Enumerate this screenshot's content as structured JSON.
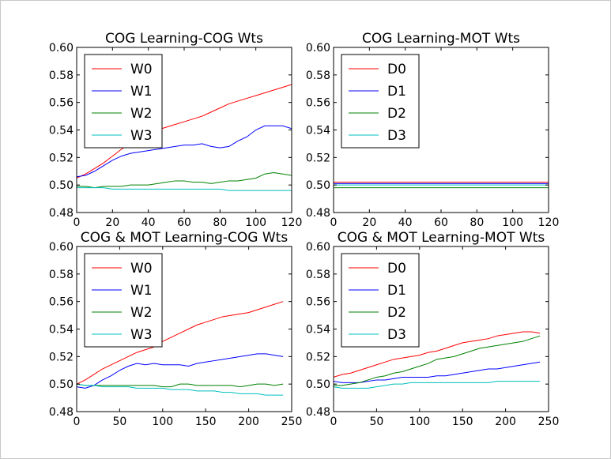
{
  "chart_data": [
    {
      "type": "line",
      "title": "COG Learning-COG Wts",
      "xlim": [
        0,
        120
      ],
      "ylim": [
        0.48,
        0.6
      ],
      "xticks": [
        "0",
        "20",
        "40",
        "60",
        "80",
        "100",
        "120"
      ],
      "yticks": [
        "0.48",
        "0.50",
        "0.52",
        "0.54",
        "0.56",
        "0.58",
        "0.60"
      ],
      "legend": {
        "location": "upper-left"
      },
      "x": [
        0,
        5,
        10,
        15,
        20,
        25,
        30,
        35,
        40,
        45,
        50,
        55,
        60,
        65,
        70,
        75,
        80,
        85,
        90,
        95,
        100,
        105,
        110,
        115,
        120
      ],
      "series": [
        {
          "name": "W0",
          "color": "#ff0000",
          "values": [
            0.505,
            0.508,
            0.512,
            0.516,
            0.521,
            0.526,
            0.53,
            0.534,
            0.537,
            0.54,
            0.542,
            0.544,
            0.546,
            0.548,
            0.55,
            0.553,
            0.556,
            0.559,
            0.561,
            0.563,
            0.565,
            0.567,
            0.569,
            0.571,
            0.573
          ]
        },
        {
          "name": "W1",
          "color": "#0000ff",
          "values": [
            0.506,
            0.507,
            0.51,
            0.514,
            0.518,
            0.521,
            0.523,
            0.524,
            0.525,
            0.526,
            0.527,
            0.528,
            0.529,
            0.529,
            0.53,
            0.528,
            0.527,
            0.528,
            0.532,
            0.535,
            0.54,
            0.543,
            0.543,
            0.543,
            0.541
          ]
        },
        {
          "name": "W2",
          "color": "#008000",
          "values": [
            0.499,
            0.499,
            0.498,
            0.499,
            0.499,
            0.499,
            0.5,
            0.5,
            0.5,
            0.501,
            0.502,
            0.503,
            0.503,
            0.502,
            0.502,
            0.501,
            0.502,
            0.503,
            0.503,
            0.504,
            0.505,
            0.508,
            0.509,
            0.508,
            0.507
          ]
        },
        {
          "name": "W3",
          "color": "#00bfbf",
          "values": [
            0.498,
            0.498,
            0.498,
            0.498,
            0.497,
            0.497,
            0.497,
            0.497,
            0.497,
            0.497,
            0.497,
            0.497,
            0.497,
            0.497,
            0.497,
            0.497,
            0.497,
            0.496,
            0.496,
            0.496,
            0.496,
            0.496,
            0.496,
            0.496,
            0.496
          ]
        }
      ]
    },
    {
      "type": "line",
      "title": "COG Learning-MOT Wts",
      "xlim": [
        0,
        120
      ],
      "ylim": [
        0.48,
        0.6
      ],
      "xticks": [
        "0",
        "20",
        "40",
        "60",
        "80",
        "100",
        "120"
      ],
      "yticks": [
        "0.48",
        "0.50",
        "0.52",
        "0.54",
        "0.56",
        "0.58",
        "0.60"
      ],
      "legend": {
        "location": "upper-left"
      },
      "x": [
        0,
        120
      ],
      "series": [
        {
          "name": "D0",
          "color": "#ff0000",
          "values": [
            0.502,
            0.502
          ]
        },
        {
          "name": "D1",
          "color": "#0000ff",
          "values": [
            0.501,
            0.501
          ]
        },
        {
          "name": "D2",
          "color": "#008000",
          "values": [
            0.498,
            0.498
          ]
        },
        {
          "name": "D3",
          "color": "#00bfbf",
          "values": [
            0.5,
            0.5
          ]
        }
      ]
    },
    {
      "type": "line",
      "title": "COG & MOT Learning-COG Wts",
      "xlim": [
        0,
        250
      ],
      "ylim": [
        0.48,
        0.6
      ],
      "xticks": [
        "0",
        "50",
        "100",
        "150",
        "200",
        "250"
      ],
      "yticks": [
        "0.48",
        "0.50",
        "0.52",
        "0.54",
        "0.56",
        "0.58",
        "0.60"
      ],
      "legend": {
        "location": "upper-left"
      },
      "x": [
        0,
        10,
        20,
        30,
        40,
        50,
        60,
        70,
        80,
        90,
        100,
        110,
        120,
        130,
        140,
        150,
        160,
        170,
        180,
        190,
        200,
        210,
        220,
        230,
        240
      ],
      "series": [
        {
          "name": "W0",
          "color": "#ff0000",
          "values": [
            0.5,
            0.503,
            0.507,
            0.511,
            0.514,
            0.517,
            0.52,
            0.523,
            0.525,
            0.527,
            0.531,
            0.534,
            0.537,
            0.54,
            0.543,
            0.545,
            0.547,
            0.549,
            0.55,
            0.551,
            0.552,
            0.554,
            0.556,
            0.558,
            0.56
          ]
        },
        {
          "name": "W1",
          "color": "#0000ff",
          "values": [
            0.498,
            0.497,
            0.499,
            0.503,
            0.506,
            0.51,
            0.513,
            0.515,
            0.514,
            0.515,
            0.514,
            0.514,
            0.514,
            0.513,
            0.515,
            0.516,
            0.517,
            0.518,
            0.519,
            0.52,
            0.521,
            0.522,
            0.522,
            0.521,
            0.52
          ]
        },
        {
          "name": "W2",
          "color": "#008000",
          "values": [
            0.5,
            0.499,
            0.499,
            0.499,
            0.499,
            0.499,
            0.499,
            0.499,
            0.499,
            0.499,
            0.498,
            0.498,
            0.5,
            0.5,
            0.499,
            0.499,
            0.499,
            0.499,
            0.499,
            0.498,
            0.499,
            0.5,
            0.5,
            0.499,
            0.5
          ]
        },
        {
          "name": "W3",
          "color": "#00bfbf",
          "values": [
            0.5,
            0.499,
            0.499,
            0.498,
            0.498,
            0.498,
            0.498,
            0.497,
            0.497,
            0.497,
            0.497,
            0.496,
            0.496,
            0.496,
            0.495,
            0.495,
            0.495,
            0.494,
            0.494,
            0.493,
            0.493,
            0.493,
            0.492,
            0.492,
            0.492
          ]
        }
      ]
    },
    {
      "type": "line",
      "title": "COG & MOT Learning-MOT Wts",
      "xlim": [
        0,
        250
      ],
      "ylim": [
        0.48,
        0.6
      ],
      "xticks": [
        "0",
        "50",
        "100",
        "150",
        "200",
        "250"
      ],
      "yticks": [
        "0.48",
        "0.50",
        "0.52",
        "0.54",
        "0.56",
        "0.58",
        "0.60"
      ],
      "legend": {
        "location": "upper-left"
      },
      "x": [
        0,
        10,
        20,
        30,
        40,
        50,
        60,
        70,
        80,
        90,
        100,
        110,
        120,
        130,
        140,
        150,
        160,
        170,
        180,
        190,
        200,
        210,
        220,
        230,
        240
      ],
      "series": [
        {
          "name": "D0",
          "color": "#ff0000",
          "values": [
            0.505,
            0.507,
            0.508,
            0.51,
            0.512,
            0.514,
            0.516,
            0.518,
            0.519,
            0.52,
            0.521,
            0.523,
            0.524,
            0.526,
            0.528,
            0.53,
            0.531,
            0.532,
            0.533,
            0.535,
            0.536,
            0.537,
            0.538,
            0.538,
            0.537
          ]
        },
        {
          "name": "D1",
          "color": "#0000ff",
          "values": [
            0.502,
            0.501,
            0.501,
            0.501,
            0.502,
            0.503,
            0.503,
            0.504,
            0.505,
            0.505,
            0.505,
            0.505,
            0.506,
            0.506,
            0.507,
            0.508,
            0.509,
            0.51,
            0.511,
            0.511,
            0.512,
            0.513,
            0.514,
            0.515,
            0.516
          ]
        },
        {
          "name": "D2",
          "color": "#008000",
          "values": [
            0.499,
            0.499,
            0.5,
            0.501,
            0.503,
            0.505,
            0.506,
            0.508,
            0.509,
            0.511,
            0.513,
            0.515,
            0.518,
            0.519,
            0.52,
            0.522,
            0.524,
            0.526,
            0.527,
            0.528,
            0.529,
            0.53,
            0.531,
            0.533,
            0.535
          ]
        },
        {
          "name": "D3",
          "color": "#00bfbf",
          "values": [
            0.498,
            0.497,
            0.497,
            0.497,
            0.497,
            0.498,
            0.499,
            0.5,
            0.5,
            0.501,
            0.501,
            0.501,
            0.501,
            0.501,
            0.501,
            0.501,
            0.501,
            0.501,
            0.501,
            0.502,
            0.502,
            0.502,
            0.502,
            0.502,
            0.502
          ]
        }
      ]
    }
  ]
}
